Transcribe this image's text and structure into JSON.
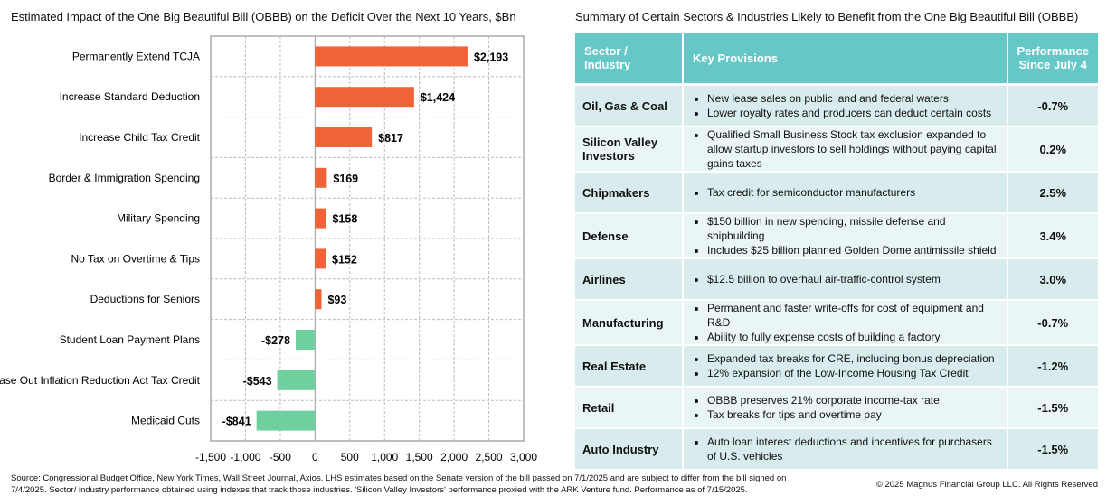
{
  "chart_data": {
    "type": "bar",
    "orientation": "horizontal",
    "title": "Estimated Impact of the One Big Beautiful Bill (OBBB) on the Deficit Over the Next 10 Years, $Bn",
    "categories": [
      "Permanently Extend TCJA",
      "Increase Standard Deduction",
      "Increase Child Tax Credit",
      "Border & Immigration Spending",
      "Military Spending",
      "No Tax on Overtime & Tips",
      "Deductions for Seniors",
      "Student Loan Payment Plans",
      "Phase Out Inflation Reduction Act Tax Credit",
      "Medicaid Cuts"
    ],
    "values": [
      2193,
      1424,
      817,
      169,
      158,
      152,
      93,
      -278,
      -543,
      -841
    ],
    "data_labels": [
      "$2,193",
      "$1,424",
      "$817",
      "$169",
      "$158",
      "$152",
      "$93",
      "-$278",
      "-$543",
      "-$841"
    ],
    "xlim": [
      -1500,
      3000
    ],
    "x_ticks": [
      -1500,
      -1000,
      -500,
      0,
      500,
      1000,
      1500,
      2000,
      2500,
      3000
    ],
    "x_tick_labels": [
      "-1,500",
      "-1,000",
      "-500",
      "0",
      "500",
      "1,000",
      "1,500",
      "2,000",
      "2,500",
      "3,000"
    ],
    "grid": true,
    "colors": {
      "positive": "#f06238",
      "negative": "#6fcf9f"
    }
  },
  "table": {
    "title": "Summary of Certain Sectors & Industries Likely to Benefit from the One Big Beautiful Bill (OBBB)",
    "headers": [
      "Sector / Industry",
      "Key Provisions",
      "Performance Since July 4"
    ],
    "header_color": "#66c7c7",
    "rows": [
      {
        "sector": "Oil, Gas & Coal",
        "provisions": [
          "New lease sales on public land and federal waters",
          "Lower royalty rates and producers can deduct certain costs"
        ],
        "perf": "-0.7%"
      },
      {
        "sector": "Silicon Valley Investors",
        "provisions": [
          "Qualified Small Business Stock tax exclusion expanded to allow startup investors to sell holdings without paying capital gains taxes"
        ],
        "perf": "0.2%"
      },
      {
        "sector": "Chipmakers",
        "provisions": [
          "Tax credit for semiconductor manufacturers"
        ],
        "perf": "2.5%"
      },
      {
        "sector": "Defense",
        "provisions": [
          "$150 billion in new spending, missile defense and shipbuilding",
          "Includes $25 billion planned Golden Dome antimissile shield"
        ],
        "perf": "3.4%"
      },
      {
        "sector": "Airlines",
        "provisions": [
          "$12.5 billion to overhaul air-traffic-control system"
        ],
        "perf": "3.0%"
      },
      {
        "sector": "Manufacturing",
        "provisions": [
          "Permanent and faster write-offs for cost of equipment and R&D",
          "Ability to fully expense costs of building a factory"
        ],
        "perf": "-0.7%"
      },
      {
        "sector": "Real Estate",
        "provisions": [
          "Expanded tax breaks for CRE, including bonus depreciation",
          "12% expansion of the Low-Income Housing Tax Credit"
        ],
        "perf": "-1.2%"
      },
      {
        "sector": "Retail",
        "provisions": [
          "OBBB preserves 21% corporate income-tax rate",
          "Tax breaks for tips and overtime pay"
        ],
        "perf": "-1.5%"
      },
      {
        "sector": "Auto Industry",
        "provisions": [
          "Auto loan interest deductions and incentives for purchasers of U.S. vehicles"
        ],
        "perf": "-1.5%"
      }
    ]
  },
  "footer": {
    "source": "Source: Congressional Budget Office, New York Times, Wall Street Journal, Axios. LHS estimates based on the Senate version of the bill passed on 7/1/2025 and are subject to differ from the bill signed on 7/4/2025. Sector/ industry performance obtained using indexes that track those industries. 'Silicon Valley Investors' performance proxied with the ARK Venture fund. Performance as of 7/15/2025.",
    "copyright": "© 2025 Magnus Financial Group LLC. All Rights Reserved"
  }
}
